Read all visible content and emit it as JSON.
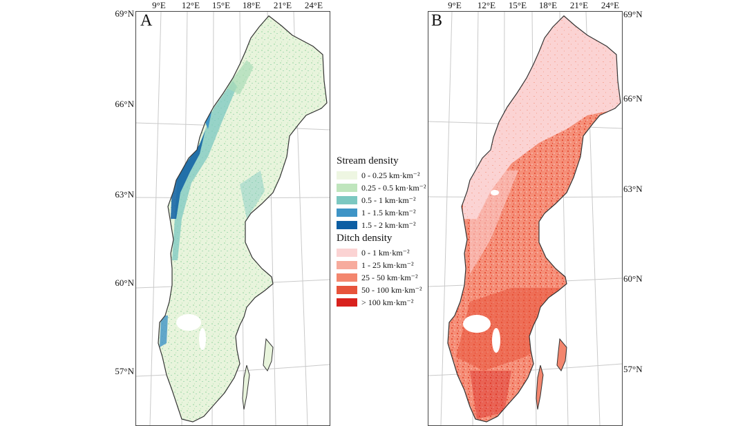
{
  "panels": [
    {
      "letter": "A",
      "theme": "stream",
      "lon_labels": [
        "9°E",
        "12°E",
        "15°E",
        "18°E",
        "21°E",
        "24°E"
      ],
      "lat_labels": [
        "69°N",
        "66°N",
        "63°N",
        "60°N",
        "57°N"
      ]
    },
    {
      "letter": "B",
      "theme": "ditch",
      "lon_labels": [
        "9°E",
        "12°E",
        "15°E",
        "18°E",
        "21°E",
        "24°E"
      ],
      "lat_labels": [
        "69°N",
        "66°N",
        "63°N",
        "60°N",
        "57°N"
      ]
    }
  ],
  "legend": {
    "stream": {
      "title": "Stream density",
      "items": [
        {
          "label": "0 - 0.25 km·km⁻²",
          "color": "#eef6e2"
        },
        {
          "label": "0.25 - 0.5 km·km⁻²",
          "color": "#bfe5bd"
        },
        {
          "label": "0.5 - 1 km·km⁻²",
          "color": "#7cc8c1"
        },
        {
          "label": "1 - 1.5 km·km⁻²",
          "color": "#3e94c6"
        },
        {
          "label": "1.5 - 2 km·km⁻²",
          "color": "#0d5ea3"
        }
      ]
    },
    "ditch": {
      "title": "Ditch density",
      "items": [
        {
          "label": "0 - 1 km·km⁻²",
          "color": "#fbd3d3"
        },
        {
          "label": "1 - 25 km·km⁻²",
          "color": "#f7ab9d"
        },
        {
          "label": "25 - 50 km·km⁻²",
          "color": "#f3866e"
        },
        {
          "label": "50 - 100 km·km⁻²",
          "color": "#e7533b"
        },
        {
          "label": "> 100 km·km⁻²",
          "color": "#d8211d"
        }
      ]
    }
  }
}
